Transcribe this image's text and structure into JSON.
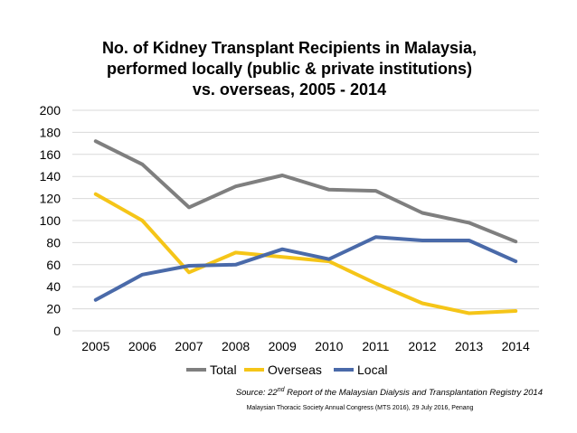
{
  "colors": {
    "Total": "#7f7f7f",
    "Overseas": "#f5c518",
    "Local": "#4a6aa9",
    "grid": "#d9d9d9"
  },
  "chart_data": {
    "type": "line",
    "title_lines": [
      "No. of Kidney Transplant Recipients in Malaysia,",
      "performed locally (public & private institutions)",
      "vs. overseas, 2005 - 2014"
    ],
    "x": [
      "2005",
      "2006",
      "2007",
      "2008",
      "2009",
      "2010",
      "2011",
      "2012",
      "2013",
      "2014"
    ],
    "series": [
      {
        "name": "Total",
        "values": [
          172,
          151,
          112,
          131,
          141,
          128,
          127,
          107,
          98,
          81
        ]
      },
      {
        "name": "Overseas",
        "values": [
          124,
          100,
          53,
          71,
          67,
          63,
          43,
          25,
          16,
          18
        ]
      },
      {
        "name": "Local",
        "values": [
          28,
          51,
          59,
          60,
          74,
          65,
          85,
          82,
          82,
          63
        ]
      }
    ],
    "ylim": [
      0,
      200
    ],
    "yticks": [
      0,
      20,
      40,
      60,
      80,
      100,
      120,
      140,
      160,
      180,
      200
    ],
    "grid": true,
    "legend_position": "bottom",
    "xlabel": "",
    "ylabel": ""
  },
  "source": {
    "prefix": "Source: 22",
    "superscript": "nd",
    "suffix": " Report of the Malaysian Dialysis and Transplantation Registry 2014"
  },
  "footer": "Malaysian Thoracic Society Annual Congress (MTS 2016), 29 July 2016, Penang"
}
